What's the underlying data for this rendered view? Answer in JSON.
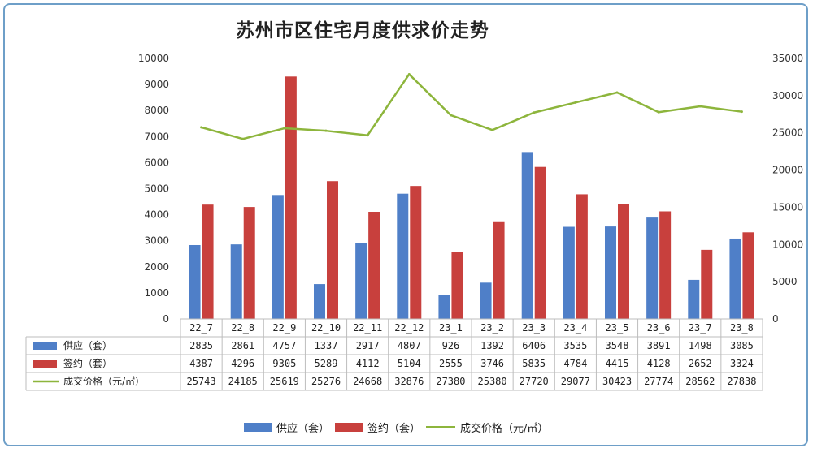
{
  "chart_data": {
    "type": "bar",
    "title": "苏州市区住宅月度供求价走势",
    "categories": [
      "22_7",
      "22_8",
      "22_9",
      "22_10",
      "22_11",
      "22_12",
      "23_1",
      "23_2",
      "23_3",
      "23_4",
      "23_5",
      "23_6",
      "23_7",
      "23_8"
    ],
    "series": [
      {
        "name": "供应（套）",
        "type": "bar",
        "axis": "left",
        "color": "#4f7fc8",
        "values": [
          2835,
          2861,
          4757,
          1337,
          2917,
          4807,
          926,
          1392,
          6406,
          3535,
          3548,
          3891,
          1498,
          3085
        ]
      },
      {
        "name": "签约（套）",
        "type": "bar",
        "axis": "left",
        "color": "#c8403d",
        "values": [
          4387,
          4296,
          9305,
          5289,
          4112,
          5104,
          2555,
          3746,
          5835,
          4784,
          4415,
          4128,
          2652,
          3324
        ]
      },
      {
        "name": "成交价格（元/㎡）",
        "type": "line",
        "axis": "right",
        "color": "#8db53c",
        "values": [
          25743,
          24185,
          25619,
          25276,
          24668,
          32876,
          27380,
          25380,
          27720,
          29077,
          30423,
          27774,
          28562,
          27838
        ]
      }
    ],
    "y_left": {
      "min": 0,
      "max": 10000,
      "ticks": [
        "0",
        "1000",
        "2000",
        "3000",
        "4000",
        "5000",
        "6000",
        "7000",
        "8000",
        "9000",
        "10000"
      ]
    },
    "y_right": {
      "min": 0,
      "max": 35000,
      "ticks": [
        "0",
        "5000",
        "10000",
        "15000",
        "20000",
        "25000",
        "30000",
        "35000"
      ]
    },
    "table_price_labels": [
      "25743",
      "24185",
      "25619",
      "25276",
      "24668",
      "32876",
      "27380",
      "25380",
      "27720",
      "29077",
      "30423",
      "27774",
      "28562",
      "27838"
    ],
    "grid": false,
    "legend_position": "bottom"
  }
}
